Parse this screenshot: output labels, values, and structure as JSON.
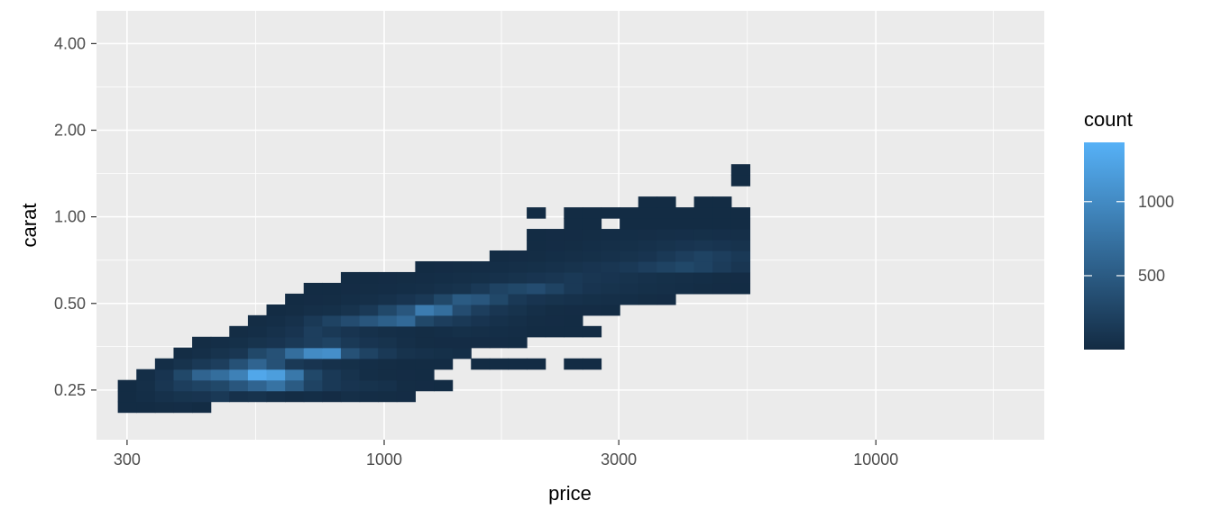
{
  "chart_data": {
    "type": "heatmap",
    "xlabel": "price",
    "ylabel": "carat",
    "x_scale": "log10",
    "y_scale": "log10",
    "xlim": [
      260,
      22000
    ],
    "ylim": [
      0.168,
      5.2
    ],
    "x_ticks": [
      {
        "value": 300,
        "label": "300"
      },
      {
        "value": 1000,
        "label": "1000"
      },
      {
        "value": 3000,
        "label": "3000"
      },
      {
        "value": 10000,
        "label": "10000"
      }
    ],
    "y_ticks": [
      {
        "value": 0.25,
        "label": "0.25"
      },
      {
        "value": 0.5,
        "label": "0.50"
      },
      {
        "value": 1.0,
        "label": "1.00"
      },
      {
        "value": 2.0,
        "label": "2.00"
      },
      {
        "value": 4.0,
        "label": "4.00"
      }
    ],
    "x_minor": [
      548,
      1732,
      5477,
      17320
    ],
    "y_minor": [
      0.354,
      0.707,
      1.414,
      2.828
    ],
    "bin_log10_width": 0.0378,
    "bin_log10_height": 0.0375,
    "x_bin_origin_log10": 2.4583,
    "y_bin_origin_log10": -0.7545,
    "count_max": 1400,
    "legend": {
      "title": "count",
      "position": "right",
      "ticks": [
        {
          "value": 500,
          "label": "500"
        },
        {
          "value": 1000,
          "label": "1000"
        }
      ],
      "color_low": "#132b43",
      "color_high": "#56b1f7",
      "min": 1,
      "max": 1400
    },
    "cells": [
      [
        0,
        2,
        8
      ],
      [
        1,
        2,
        10
      ],
      [
        2,
        2,
        20
      ],
      [
        3,
        2,
        25
      ],
      [
        4,
        2,
        10
      ],
      [
        0,
        3,
        8
      ],
      [
        1,
        3,
        30
      ],
      [
        2,
        3,
        60
      ],
      [
        3,
        3,
        90
      ],
      [
        4,
        3,
        100
      ],
      [
        5,
        3,
        150
      ],
      [
        6,
        3,
        60
      ],
      [
        7,
        3,
        80
      ],
      [
        8,
        3,
        40
      ],
      [
        9,
        3,
        20
      ],
      [
        10,
        3,
        30
      ],
      [
        11,
        3,
        15
      ],
      [
        12,
        3,
        40
      ],
      [
        13,
        3,
        25
      ],
      [
        14,
        3,
        20
      ],
      [
        15,
        3,
        15
      ],
      [
        0,
        4,
        10
      ],
      [
        1,
        4,
        40
      ],
      [
        2,
        4,
        120
      ],
      [
        3,
        4,
        200
      ],
      [
        4,
        4,
        250
      ],
      [
        5,
        4,
        300
      ],
      [
        6,
        4,
        450
      ],
      [
        7,
        4,
        600
      ],
      [
        8,
        4,
        750
      ],
      [
        9,
        4,
        500
      ],
      [
        10,
        4,
        250
      ],
      [
        11,
        4,
        150
      ],
      [
        12,
        4,
        100
      ],
      [
        13,
        4,
        80
      ],
      [
        14,
        4,
        60
      ],
      [
        15,
        4,
        20
      ],
      [
        16,
        4,
        15
      ],
      [
        17,
        4,
        10
      ],
      [
        1,
        5,
        30
      ],
      [
        2,
        5,
        100
      ],
      [
        3,
        5,
        300
      ],
      [
        4,
        5,
        600
      ],
      [
        5,
        5,
        700
      ],
      [
        6,
        5,
        900
      ],
      [
        7,
        5,
        1300
      ],
      [
        8,
        5,
        1200
      ],
      [
        9,
        5,
        800
      ],
      [
        10,
        5,
        300
      ],
      [
        11,
        5,
        150
      ],
      [
        12,
        5,
        80
      ],
      [
        13,
        5,
        30
      ],
      [
        14,
        5,
        20
      ],
      [
        15,
        5,
        15
      ],
      [
        16,
        5,
        10
      ],
      [
        2,
        6,
        30
      ],
      [
        3,
        6,
        80
      ],
      [
        4,
        6,
        150
      ],
      [
        5,
        6,
        200
      ],
      [
        6,
        6,
        400
      ],
      [
        7,
        6,
        600
      ],
      [
        8,
        6,
        400
      ],
      [
        9,
        6,
        150
      ],
      [
        10,
        6,
        100
      ],
      [
        11,
        6,
        60
      ],
      [
        12,
        6,
        50
      ],
      [
        13,
        6,
        30
      ],
      [
        14,
        6,
        20
      ],
      [
        15,
        6,
        10
      ],
      [
        16,
        6,
        10
      ],
      [
        17,
        6,
        10
      ],
      [
        19,
        6,
        10
      ],
      [
        20,
        6,
        10
      ],
      [
        21,
        6,
        10
      ],
      [
        22,
        6,
        10
      ],
      [
        24,
        6,
        10
      ],
      [
        25,
        6,
        10
      ],
      [
        3,
        7,
        20
      ],
      [
        4,
        7,
        40
      ],
      [
        5,
        7,
        80
      ],
      [
        6,
        7,
        120
      ],
      [
        7,
        7,
        300
      ],
      [
        8,
        7,
        400
      ],
      [
        9,
        7,
        700
      ],
      [
        10,
        7,
        1000
      ],
      [
        11,
        7,
        1050
      ],
      [
        12,
        7,
        400
      ],
      [
        13,
        7,
        250
      ],
      [
        14,
        7,
        150
      ],
      [
        15,
        7,
        80
      ],
      [
        16,
        7,
        60
      ],
      [
        17,
        7,
        50
      ],
      [
        18,
        7,
        30
      ],
      [
        4,
        8,
        20
      ],
      [
        5,
        8,
        30
      ],
      [
        6,
        8,
        50
      ],
      [
        7,
        8,
        80
      ],
      [
        8,
        8,
        100
      ],
      [
        9,
        8,
        150
      ],
      [
        10,
        8,
        200
      ],
      [
        11,
        8,
        250
      ],
      [
        12,
        8,
        150
      ],
      [
        13,
        8,
        100
      ],
      [
        14,
        8,
        80
      ],
      [
        15,
        8,
        40
      ],
      [
        16,
        8,
        20
      ],
      [
        17,
        8,
        15
      ],
      [
        18,
        8,
        15
      ],
      [
        19,
        8,
        15
      ],
      [
        20,
        8,
        15
      ],
      [
        21,
        8,
        10
      ],
      [
        6,
        9,
        20
      ],
      [
        7,
        9,
        30
      ],
      [
        8,
        9,
        60
      ],
      [
        9,
        9,
        100
      ],
      [
        10,
        9,
        200
      ],
      [
        11,
        9,
        150
      ],
      [
        12,
        9,
        100
      ],
      [
        13,
        9,
        60
      ],
      [
        14,
        9,
        40
      ],
      [
        15,
        9,
        30
      ],
      [
        16,
        9,
        20
      ],
      [
        17,
        9,
        30
      ],
      [
        18,
        9,
        50
      ],
      [
        19,
        9,
        40
      ],
      [
        20,
        9,
        30
      ],
      [
        21,
        9,
        25
      ],
      [
        22,
        9,
        10
      ],
      [
        23,
        9,
        10
      ],
      [
        24,
        9,
        10
      ],
      [
        25,
        9,
        10
      ],
      [
        7,
        10,
        20
      ],
      [
        8,
        10,
        30
      ],
      [
        9,
        10,
        60
      ],
      [
        10,
        10,
        150
      ],
      [
        11,
        10,
        250
      ],
      [
        12,
        10,
        350
      ],
      [
        13,
        10,
        450
      ],
      [
        14,
        10,
        550
      ],
      [
        15,
        10,
        650
      ],
      [
        16,
        10,
        300
      ],
      [
        17,
        10,
        200
      ],
      [
        18,
        10,
        150
      ],
      [
        19,
        10,
        100
      ],
      [
        20,
        10,
        60
      ],
      [
        21,
        10,
        40
      ],
      [
        22,
        10,
        20
      ],
      [
        23,
        10,
        15
      ],
      [
        24,
        10,
        10
      ],
      [
        8,
        11,
        10
      ],
      [
        9,
        11,
        20
      ],
      [
        10,
        11,
        40
      ],
      [
        11,
        11,
        50
      ],
      [
        12,
        11,
        80
      ],
      [
        13,
        11,
        150
      ],
      [
        14,
        11,
        300
      ],
      [
        15,
        11,
        450
      ],
      [
        16,
        11,
        850
      ],
      [
        17,
        11,
        700
      ],
      [
        18,
        11,
        350
      ],
      [
        19,
        11,
        200
      ],
      [
        20,
        11,
        120
      ],
      [
        21,
        11,
        80
      ],
      [
        22,
        11,
        40
      ],
      [
        23,
        11,
        20
      ],
      [
        24,
        11,
        15
      ],
      [
        25,
        11,
        15
      ],
      [
        26,
        11,
        10
      ],
      [
        9,
        12,
        10
      ],
      [
        10,
        12,
        15
      ],
      [
        11,
        12,
        20
      ],
      [
        12,
        12,
        30
      ],
      [
        13,
        12,
        40
      ],
      [
        14,
        12,
        60
      ],
      [
        15,
        12,
        100
      ],
      [
        16,
        12,
        150
      ],
      [
        17,
        12,
        300
      ],
      [
        18,
        12,
        500
      ],
      [
        19,
        12,
        450
      ],
      [
        20,
        12,
        300
      ],
      [
        21,
        12,
        150
      ],
      [
        22,
        12,
        100
      ],
      [
        23,
        12,
        80
      ],
      [
        24,
        12,
        60
      ],
      [
        25,
        12,
        50
      ],
      [
        26,
        12,
        40
      ],
      [
        27,
        12,
        30
      ],
      [
        28,
        12,
        20
      ],
      [
        29,
        12,
        15
      ],
      [
        10,
        13,
        10
      ],
      [
        11,
        13,
        10
      ],
      [
        12,
        13,
        15
      ],
      [
        13,
        13,
        20
      ],
      [
        14,
        13,
        25
      ],
      [
        15,
        13,
        30
      ],
      [
        16,
        13,
        40
      ],
      [
        17,
        13,
        60
      ],
      [
        18,
        13,
        80
      ],
      [
        19,
        13,
        150
      ],
      [
        20,
        13,
        250
      ],
      [
        21,
        13,
        300
      ],
      [
        22,
        13,
        350
      ],
      [
        23,
        13,
        250
      ],
      [
        24,
        13,
        150
      ],
      [
        25,
        13,
        100
      ],
      [
        26,
        13,
        80
      ],
      [
        27,
        13,
        60
      ],
      [
        28,
        13,
        50
      ],
      [
        29,
        13,
        40
      ],
      [
        30,
        13,
        30
      ],
      [
        31,
        13,
        20
      ],
      [
        32,
        13,
        15
      ],
      [
        33,
        13,
        10
      ],
      [
        12,
        14,
        10
      ],
      [
        13,
        14,
        10
      ],
      [
        14,
        14,
        15
      ],
      [
        15,
        14,
        20
      ],
      [
        16,
        14,
        25
      ],
      [
        17,
        14,
        30
      ],
      [
        18,
        14,
        40
      ],
      [
        19,
        14,
        50
      ],
      [
        20,
        14,
        60
      ],
      [
        21,
        14,
        80
      ],
      [
        22,
        14,
        100
      ],
      [
        23,
        14,
        120
      ],
      [
        24,
        14,
        150
      ],
      [
        25,
        14,
        120
      ],
      [
        26,
        14,
        100
      ],
      [
        27,
        14,
        80
      ],
      [
        28,
        14,
        60
      ],
      [
        29,
        14,
        50
      ],
      [
        30,
        14,
        40
      ],
      [
        31,
        14,
        30
      ],
      [
        32,
        14,
        20
      ],
      [
        33,
        14,
        15
      ],
      [
        16,
        15,
        10
      ],
      [
        17,
        15,
        15
      ],
      [
        18,
        15,
        20
      ],
      [
        19,
        15,
        25
      ],
      [
        20,
        15,
        30
      ],
      [
        21,
        15,
        40
      ],
      [
        22,
        15,
        50
      ],
      [
        23,
        15,
        60
      ],
      [
        24,
        15,
        80
      ],
      [
        25,
        15,
        100
      ],
      [
        26,
        15,
        120
      ],
      [
        27,
        15,
        150
      ],
      [
        28,
        15,
        200
      ],
      [
        29,
        15,
        250
      ],
      [
        30,
        15,
        300
      ],
      [
        31,
        15,
        250
      ],
      [
        32,
        15,
        180
      ],
      [
        33,
        15,
        120
      ],
      [
        20,
        16,
        10
      ],
      [
        21,
        16,
        15
      ],
      [
        22,
        16,
        20
      ],
      [
        23,
        16,
        30
      ],
      [
        24,
        16,
        40
      ],
      [
        25,
        16,
        50
      ],
      [
        26,
        16,
        60
      ],
      [
        27,
        16,
        80
      ],
      [
        28,
        16,
        100
      ],
      [
        29,
        16,
        150
      ],
      [
        30,
        16,
        200
      ],
      [
        31,
        16,
        250
      ],
      [
        32,
        16,
        200
      ],
      [
        33,
        16,
        150
      ],
      [
        22,
        17,
        10
      ],
      [
        23,
        17,
        15
      ],
      [
        24,
        17,
        20
      ],
      [
        25,
        17,
        30
      ],
      [
        26,
        17,
        40
      ],
      [
        27,
        17,
        50
      ],
      [
        28,
        17,
        60
      ],
      [
        29,
        17,
        80
      ],
      [
        30,
        17,
        100
      ],
      [
        31,
        17,
        120
      ],
      [
        32,
        17,
        100
      ],
      [
        33,
        17,
        80
      ],
      [
        22,
        18,
        10
      ],
      [
        23,
        18,
        15
      ],
      [
        24,
        18,
        15
      ],
      [
        25,
        18,
        20
      ],
      [
        26,
        18,
        25
      ],
      [
        27,
        18,
        30
      ],
      [
        28,
        18,
        35
      ],
      [
        29,
        18,
        40
      ],
      [
        30,
        18,
        45
      ],
      [
        31,
        18,
        50
      ],
      [
        32,
        18,
        45
      ],
      [
        33,
        18,
        40
      ],
      [
        24,
        19,
        10
      ],
      [
        25,
        19,
        10
      ],
      [
        27,
        19,
        10
      ],
      [
        28,
        19,
        10
      ],
      [
        29,
        19,
        10
      ],
      [
        30,
        19,
        10
      ],
      [
        31,
        19,
        10
      ],
      [
        32,
        19,
        10
      ],
      [
        33,
        19,
        10
      ],
      [
        22,
        20,
        10
      ],
      [
        24,
        20,
        10
      ],
      [
        25,
        20,
        10
      ],
      [
        26,
        20,
        10
      ],
      [
        27,
        20,
        10
      ],
      [
        28,
        20,
        10
      ],
      [
        29,
        20,
        10
      ],
      [
        30,
        20,
        10
      ],
      [
        31,
        20,
        10
      ],
      [
        32,
        20,
        10
      ],
      [
        33,
        20,
        10
      ],
      [
        28,
        21,
        10
      ],
      [
        29,
        21,
        10
      ],
      [
        31,
        21,
        10
      ],
      [
        32,
        21,
        10
      ],
      [
        33,
        23,
        10
      ],
      [
        33,
        24,
        10
      ]
    ]
  }
}
